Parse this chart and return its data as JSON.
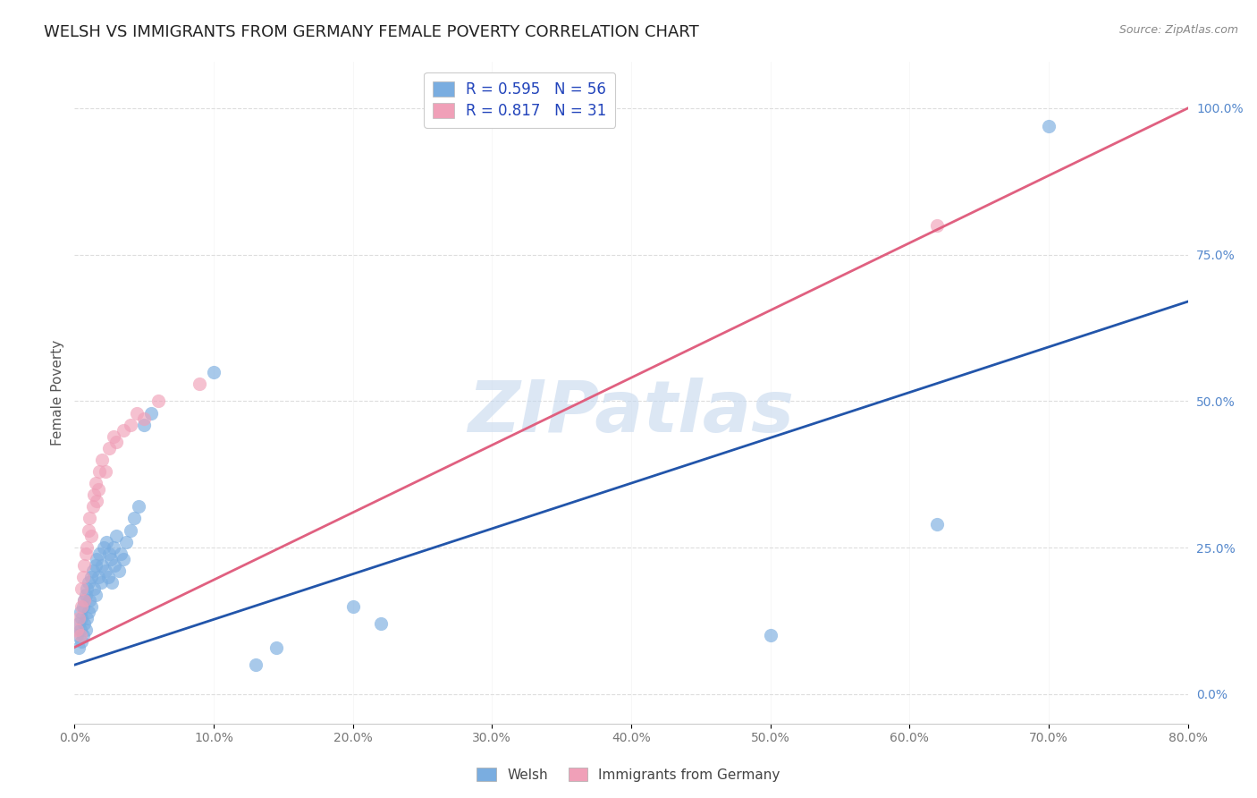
{
  "title": "WELSH VS IMMIGRANTS FROM GERMANY FEMALE POVERTY CORRELATION CHART",
  "source": "Source: ZipAtlas.com",
  "ylabel": "Female Poverty",
  "watermark": "ZIPatlas",
  "welsh_R": 0.595,
  "welsh_N": 56,
  "germany_R": 0.817,
  "germany_N": 31,
  "xmin": 0.0,
  "xmax": 0.8,
  "ymin": -0.05,
  "ymax": 1.08,
  "welsh_color": "#7aade0",
  "germany_color": "#f0a0b8",
  "welsh_line_color": "#2255aa",
  "germany_line_color": "#e06080",
  "welsh_scatter": [
    [
      0.002,
      0.1
    ],
    [
      0.003,
      0.12
    ],
    [
      0.003,
      0.08
    ],
    [
      0.004,
      0.11
    ],
    [
      0.004,
      0.14
    ],
    [
      0.005,
      0.09
    ],
    [
      0.005,
      0.13
    ],
    [
      0.006,
      0.1
    ],
    [
      0.006,
      0.15
    ],
    [
      0.007,
      0.12
    ],
    [
      0.007,
      0.16
    ],
    [
      0.008,
      0.11
    ],
    [
      0.008,
      0.17
    ],
    [
      0.009,
      0.13
    ],
    [
      0.009,
      0.18
    ],
    [
      0.01,
      0.14
    ],
    [
      0.01,
      0.19
    ],
    [
      0.011,
      0.16
    ],
    [
      0.012,
      0.2
    ],
    [
      0.012,
      0.15
    ],
    [
      0.013,
      0.21
    ],
    [
      0.014,
      0.18
    ],
    [
      0.015,
      0.22
    ],
    [
      0.015,
      0.17
    ],
    [
      0.016,
      0.23
    ],
    [
      0.017,
      0.2
    ],
    [
      0.018,
      0.24
    ],
    [
      0.019,
      0.19
    ],
    [
      0.02,
      0.22
    ],
    [
      0.021,
      0.25
    ],
    [
      0.022,
      0.21
    ],
    [
      0.023,
      0.26
    ],
    [
      0.024,
      0.2
    ],
    [
      0.025,
      0.24
    ],
    [
      0.026,
      0.23
    ],
    [
      0.027,
      0.19
    ],
    [
      0.028,
      0.25
    ],
    [
      0.029,
      0.22
    ],
    [
      0.03,
      0.27
    ],
    [
      0.032,
      0.21
    ],
    [
      0.033,
      0.24
    ],
    [
      0.035,
      0.23
    ],
    [
      0.037,
      0.26
    ],
    [
      0.04,
      0.28
    ],
    [
      0.043,
      0.3
    ],
    [
      0.046,
      0.32
    ],
    [
      0.05,
      0.46
    ],
    [
      0.055,
      0.48
    ],
    [
      0.1,
      0.55
    ],
    [
      0.13,
      0.05
    ],
    [
      0.145,
      0.08
    ],
    [
      0.2,
      0.15
    ],
    [
      0.22,
      0.12
    ],
    [
      0.5,
      0.1
    ],
    [
      0.62,
      0.29
    ],
    [
      0.7,
      0.97
    ]
  ],
  "germany_scatter": [
    [
      0.002,
      0.11
    ],
    [
      0.003,
      0.13
    ],
    [
      0.004,
      0.1
    ],
    [
      0.005,
      0.15
    ],
    [
      0.005,
      0.18
    ],
    [
      0.006,
      0.2
    ],
    [
      0.007,
      0.16
    ],
    [
      0.007,
      0.22
    ],
    [
      0.008,
      0.24
    ],
    [
      0.009,
      0.25
    ],
    [
      0.01,
      0.28
    ],
    [
      0.011,
      0.3
    ],
    [
      0.012,
      0.27
    ],
    [
      0.013,
      0.32
    ],
    [
      0.014,
      0.34
    ],
    [
      0.015,
      0.36
    ],
    [
      0.016,
      0.33
    ],
    [
      0.017,
      0.35
    ],
    [
      0.018,
      0.38
    ],
    [
      0.02,
      0.4
    ],
    [
      0.022,
      0.38
    ],
    [
      0.025,
      0.42
    ],
    [
      0.028,
      0.44
    ],
    [
      0.03,
      0.43
    ],
    [
      0.035,
      0.45
    ],
    [
      0.04,
      0.46
    ],
    [
      0.045,
      0.48
    ],
    [
      0.05,
      0.47
    ],
    [
      0.06,
      0.5
    ],
    [
      0.09,
      0.53
    ],
    [
      0.62,
      0.8
    ]
  ],
  "welsh_line": [
    [
      0.0,
      0.05
    ],
    [
      0.8,
      0.67
    ]
  ],
  "germany_line": [
    [
      0.0,
      0.08
    ],
    [
      0.8,
      1.0
    ]
  ],
  "background_color": "#ffffff",
  "grid_color": "#dddddd",
  "title_fontsize": 13,
  "label_fontsize": 11,
  "tick_fontsize": 10,
  "legend_fontsize": 12,
  "scatter_size": 120
}
